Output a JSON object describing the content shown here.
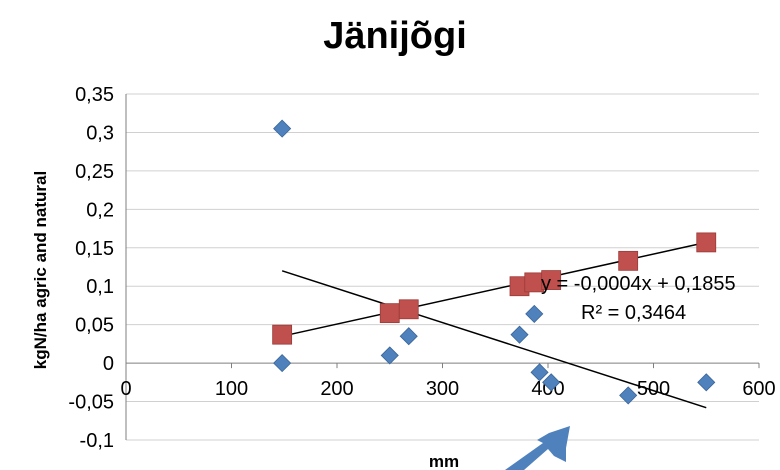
{
  "chart_data": {
    "type": "scatter",
    "title": "Jänijõgi",
    "xlabel": "mm",
    "ylabel": "kgN/ha agric and natural",
    "xlim": [
      0,
      600
    ],
    "ylim": [
      -0.1,
      0.35
    ],
    "x_ticks": [
      "0",
      "100",
      "200",
      "300",
      "400",
      "500",
      "600"
    ],
    "y_ticks": [
      "0,35",
      "0,3",
      "0,25",
      "0,2",
      "0,15",
      "0,1",
      "0,05",
      "0",
      "-0,05",
      "-0,1"
    ],
    "grid": true,
    "series": [
      {
        "marker": "diamond",
        "color": "#4F81BD",
        "points": [
          [
            148,
            0.305
          ],
          [
            148,
            0.0
          ],
          [
            250,
            0.01
          ],
          [
            268,
            0.035
          ],
          [
            373,
            0.037
          ],
          [
            387,
            0.064
          ],
          [
            392,
            -0.012
          ],
          [
            403,
            -0.025
          ],
          [
            476,
            -0.042
          ],
          [
            550,
            -0.025
          ]
        ],
        "trendline": {
          "x": [
            148,
            550
          ],
          "y": [
            0.12,
            -0.058
          ]
        }
      },
      {
        "marker": "square",
        "color": "#C0504D",
        "points": [
          [
            148,
            0.037
          ],
          [
            250,
            0.065
          ],
          [
            268,
            0.07
          ],
          [
            373,
            0.1
          ],
          [
            387,
            0.105
          ],
          [
            403,
            0.108
          ],
          [
            476,
            0.133
          ],
          [
            550,
            0.157
          ]
        ],
        "trendline": {
          "x": [
            148,
            550
          ],
          "y": [
            0.035,
            0.157
          ]
        }
      }
    ],
    "annotations": {
      "equation": "y = -0,0004x + 0,1855",
      "r_squared": "R² = 0,3464"
    },
    "arrow_color": "#4F81BD"
  }
}
